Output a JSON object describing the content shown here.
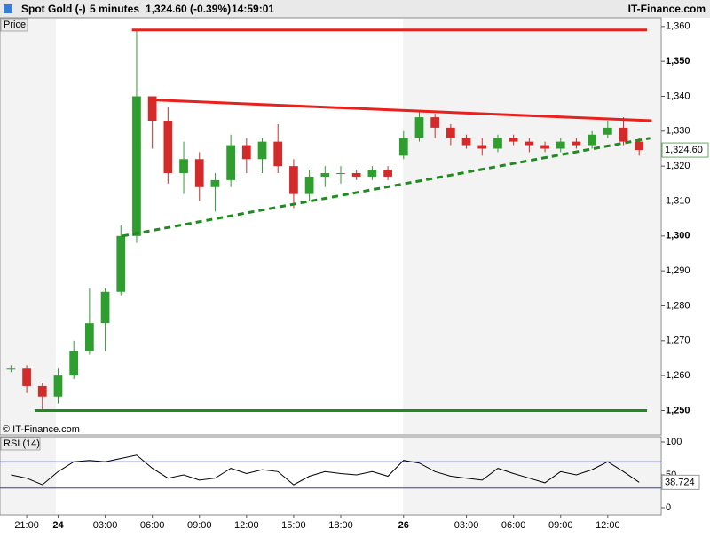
{
  "header": {
    "instrument": "Spot Gold (-)",
    "interval": "5 minutes",
    "quote": "1,324.60 (-0.39%)",
    "time": "14:59:01",
    "brand": "IT-Finance.com"
  },
  "chart_data": [
    {
      "type": "candlestick",
      "title": "Price",
      "watermark": "© IT-Finance.com",
      "up_color": "#2e9e2e",
      "down_color": "#d42a2a",
      "candles": [
        [
          1262,
          1263,
          1261,
          1262
        ],
        [
          1262,
          1263,
          1255,
          1257
        ],
        [
          1257,
          1258,
          1250,
          1254
        ],
        [
          1254,
          1262,
          1252,
          1260
        ],
        [
          1260,
          1270,
          1259,
          1267
        ],
        [
          1267,
          1285,
          1266,
          1275
        ],
        [
          1275,
          1285,
          1267,
          1284
        ],
        [
          1284,
          1303,
          1283,
          1300
        ],
        [
          1300,
          1359,
          1298,
          1340
        ],
        [
          1340,
          1340,
          1325,
          1333
        ],
        [
          1333,
          1337,
          1315,
          1318
        ],
        [
          1318,
          1327,
          1312,
          1322
        ],
        [
          1322,
          1324,
          1310,
          1314
        ],
        [
          1314,
          1318,
          1307,
          1316
        ],
        [
          1316,
          1329,
          1314,
          1326
        ],
        [
          1326,
          1328,
          1318,
          1322
        ],
        [
          1322,
          1328,
          1318,
          1327
        ],
        [
          1327,
          1332,
          1318,
          1320
        ],
        [
          1320,
          1322,
          1308,
          1312
        ],
        [
          1312,
          1319,
          1310,
          1317
        ],
        [
          1317,
          1320,
          1314,
          1318
        ],
        [
          1318,
          1320,
          1315,
          1318
        ],
        [
          1318,
          1319,
          1316,
          1317
        ],
        [
          1317,
          1320,
          1316,
          1319
        ],
        [
          1319,
          1320,
          1316,
          1317
        ],
        [
          1323,
          1330,
          1322,
          1328
        ],
        [
          1328,
          1336,
          1327,
          1334
        ],
        [
          1334,
          1335,
          1328,
          1331
        ],
        [
          1331,
          1332,
          1326,
          1328
        ],
        [
          1328,
          1329,
          1325,
          1326
        ],
        [
          1326,
          1328,
          1323,
          1325
        ],
        [
          1325,
          1329,
          1324,
          1328
        ],
        [
          1328,
          1329,
          1326,
          1327
        ],
        [
          1327,
          1328,
          1324,
          1326
        ],
        [
          1326,
          1327,
          1324,
          1325
        ],
        [
          1325,
          1328,
          1324,
          1327
        ],
        [
          1327,
          1328,
          1325,
          1326
        ],
        [
          1326,
          1330,
          1325,
          1329
        ],
        [
          1329,
          1333,
          1328,
          1331
        ],
        [
          1331,
          1334,
          1326,
          1327
        ],
        [
          1327,
          1328,
          1323,
          1324.6
        ]
      ],
      "xlim": [
        -0.7,
        41.4
      ],
      "ylim": [
        1243,
        1362.5
      ],
      "yticks": [
        {
          "value": 1250,
          "label": "1,250",
          "bold": true
        },
        {
          "value": 1260,
          "label": "1,260"
        },
        {
          "value": 1270,
          "label": "1,270"
        },
        {
          "value": 1280,
          "label": "1,280"
        },
        {
          "value": 1290,
          "label": "1,290"
        },
        {
          "value": 1300,
          "label": "1,300",
          "bold": true
        },
        {
          "value": 1310,
          "label": "1,310"
        },
        {
          "value": 1320,
          "label": "1,320"
        },
        {
          "value": 1330,
          "label": "1,330"
        },
        {
          "value": 1340,
          "label": "1,340"
        },
        {
          "value": 1350,
          "label": "1,350",
          "bold": true
        },
        {
          "value": 1360,
          "label": "1,360"
        }
      ],
      "trendlines": [
        {
          "color": "#e8211d",
          "dashed": false,
          "x": [
            7.7,
            40.5
          ],
          "y": [
            1359,
            1359
          ]
        },
        {
          "color": "#e8211d",
          "dashed": false,
          "x": [
            8.8,
            40.8
          ],
          "y": [
            1339,
            1333
          ]
        },
        {
          "color": "#1f8a1f",
          "dashed": true,
          "x": [
            7.1,
            40.7
          ],
          "y": [
            1300,
            1328
          ]
        },
        {
          "color": "#1f8a1f",
          "dashed": false,
          "x": [
            1.5,
            40.5
          ],
          "y": [
            1250,
            1250
          ]
        }
      ],
      "last_price": {
        "value": 1324.6,
        "label": "1,324.60"
      }
    },
    {
      "type": "line",
      "title": "RSI (14)",
      "color": "#000000",
      "band_color": "#3a3aa0",
      "values": [
        50,
        45,
        35,
        55,
        70,
        72,
        70,
        75,
        80,
        60,
        45,
        50,
        42,
        45,
        60,
        52,
        58,
        55,
        35,
        48,
        55,
        52,
        50,
        55,
        48,
        72,
        68,
        55,
        48,
        45,
        42,
        60,
        52,
        45,
        38,
        55,
        50,
        58,
        70,
        55,
        38.724
      ],
      "bands": [
        30,
        70
      ],
      "xlim": [
        -0.7,
        41.4
      ],
      "ylim": [
        -10.8,
        108.1
      ],
      "yticks": [
        0,
        50,
        100
      ],
      "last_value": {
        "value": 38.724,
        "label": "38.724"
      },
      "xticks": [
        {
          "value": 1,
          "label": "21:00"
        },
        {
          "value": 3,
          "label": "24",
          "bold": true
        },
        {
          "value": 6,
          "label": "03:00"
        },
        {
          "value": 9,
          "label": "06:00"
        },
        {
          "value": 12,
          "label": "09:00"
        },
        {
          "value": 15,
          "label": "12:00"
        },
        {
          "value": 18,
          "label": "15:00"
        },
        {
          "value": 21,
          "label": "18:00"
        },
        {
          "value": 25,
          "label": "26",
          "bold": true
        },
        {
          "value": 29,
          "label": "03:00"
        },
        {
          "value": 32,
          "label": "06:00"
        },
        {
          "value": 35,
          "label": "09:00"
        },
        {
          "value": 38,
          "label": "12:00"
        }
      ]
    }
  ]
}
